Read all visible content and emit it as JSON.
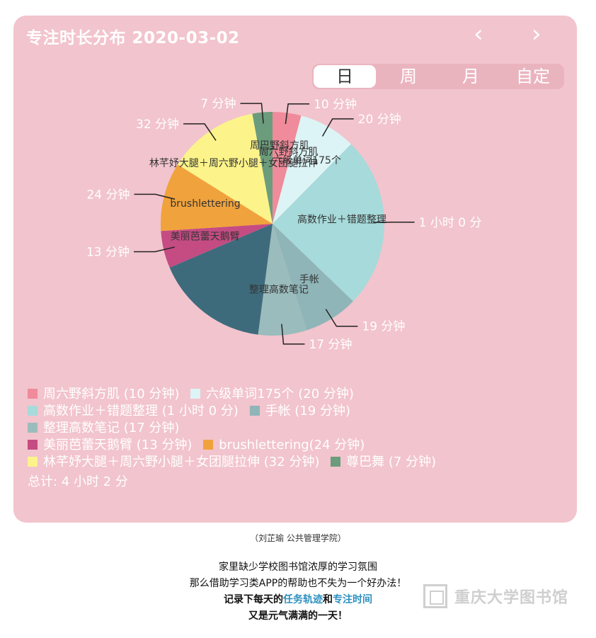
{
  "header": {
    "title": "专注时长分布 2020-03-02",
    "prev": "‹",
    "next": "›"
  },
  "tabs": [
    "日",
    "周",
    "月",
    "自定"
  ],
  "active_tab": "日",
  "chart_data": {
    "type": "pie",
    "unit": "minutes",
    "slices": [
      {
        "label": "周六野斜方肌",
        "value": 10,
        "duration": "10 分钟",
        "legend": "周六野斜方肌 (10 分钟)",
        "color": "#ef8b9a"
      },
      {
        "label": "六级单词175个",
        "value": 20,
        "duration": "20 分钟",
        "legend": "六级单词175个 (20 分钟)",
        "color": "#ddf4f6"
      },
      {
        "label": "高数作业＋错题整理",
        "value": 60,
        "duration": "1 小时 0 分",
        "legend": "高数作业＋错题整理 (1 小时 0 分)",
        "color": "#a7dada"
      },
      {
        "label": "手帐",
        "value": 19,
        "duration": "19 分钟",
        "legend": "手帐 (19 分钟)",
        "color": "#8fb5b8"
      },
      {
        "label": "整理高数笔记",
        "value": 17,
        "duration": "17 分钟",
        "legend": "整理高数笔记 (17 分钟)",
        "color": "#9bbcbd"
      },
      {
        "label": "",
        "value": 40,
        "duration": "",
        "legend": "",
        "color": "#3d6b7c"
      },
      {
        "label": "美丽芭蕾天鹅臂",
        "value": 13,
        "duration": "13 分钟",
        "legend": "美丽芭蕾天鹅臂 (13 分钟)",
        "color": "#c44c83"
      },
      {
        "label": "brushlettering",
        "value": 24,
        "duration": "24 分钟",
        "legend": "brushlettering(24 分钟)",
        "color": "#f0a23c"
      },
      {
        "label": "林芊妤大腿＋周六野小腿＋女团腿拉伸",
        "value": 32,
        "duration": "32 分钟",
        "legend": "林芊妤大腿＋周六野小腿＋女团腿拉伸 (32 分钟)",
        "color": "#fcf48a"
      },
      {
        "label": "",
        "value": 7,
        "duration": "7 分钟",
        "legend": "尊巴舞 (7 分钟)",
        "color": "#6b9c7c"
      }
    ],
    "extra_label": "周巴野斜方肌",
    "total": "总计: 4 小时 2 分"
  },
  "caption": "（刘芷瑜 公共管理学院）",
  "body": {
    "line1": "家里缺少学校图书馆浓厚的学习氛围",
    "line2": "那么借助学习类APP的帮助也不失为一个好办法！",
    "line3_a": "记录下每天的",
    "line3_b": "任务轨迹",
    "line3_c": "和",
    "line3_d": "专注时间",
    "line4": "又是元气满满的一天！"
  },
  "watermark": "重庆大学图书馆"
}
